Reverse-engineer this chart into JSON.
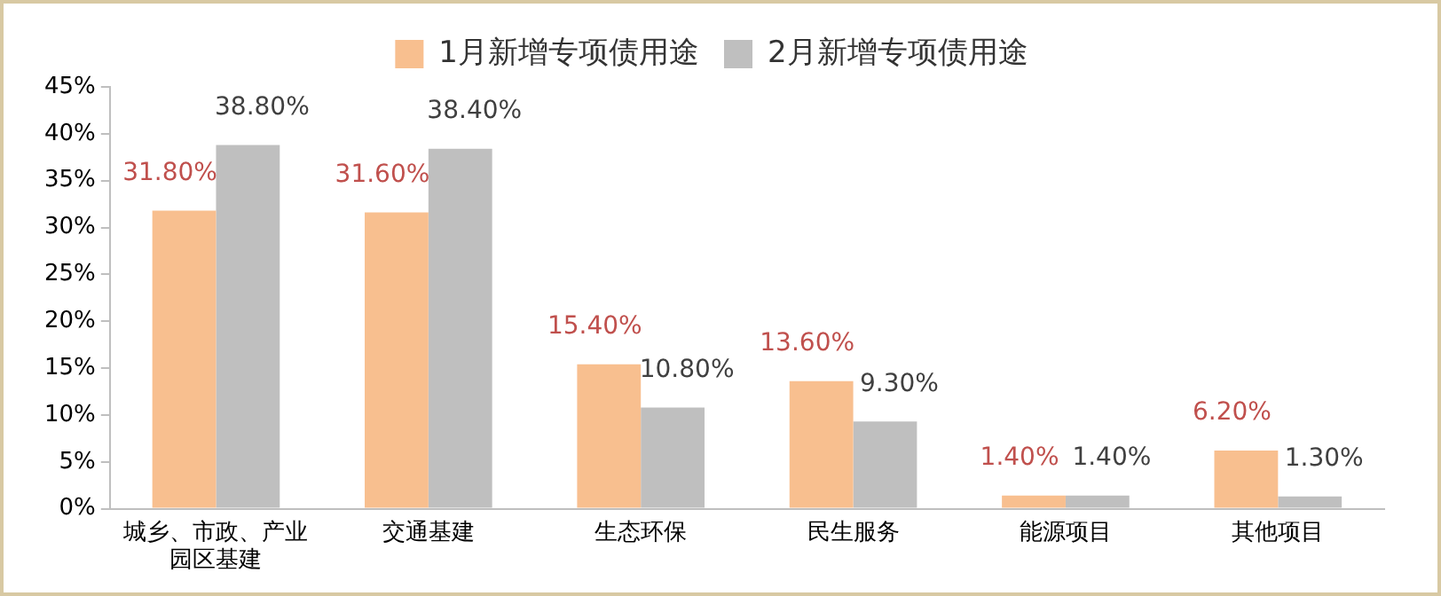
{
  "chart_data": {
    "type": "bar",
    "categories": [
      "城乡、市政、产业园区基建",
      "交通基建",
      "生态环保",
      "民生服务",
      "能源项目",
      "其他项目"
    ],
    "series": [
      {
        "name": "1月新增专项债用途",
        "color": "#f8bf8f",
        "values": [
          31.8,
          31.6,
          15.4,
          13.6,
          1.4,
          6.2
        ],
        "value_labels": [
          "31.80%",
          "31.60%",
          "15.40%",
          "13.60%",
          "1.40%",
          "6.20%"
        ]
      },
      {
        "name": "2月新增专项债用途",
        "color": "#bfbfbf",
        "values": [
          38.8,
          38.4,
          10.8,
          9.3,
          1.4,
          1.3
        ],
        "value_labels": [
          "38.80%",
          "38.40%",
          "10.80%",
          "9.30%",
          "1.40%",
          "1.30%"
        ]
      }
    ],
    "ylim": [
      0,
      45
    ],
    "yticks": [
      {
        "value": 0,
        "label": "0%"
      },
      {
        "value": 5,
        "label": "5%"
      },
      {
        "value": 10,
        "label": "10%"
      },
      {
        "value": 15,
        "label": "15%"
      },
      {
        "value": 20,
        "label": "20%"
      },
      {
        "value": 25,
        "label": "25%"
      },
      {
        "value": 30,
        "label": "30%"
      },
      {
        "value": 35,
        "label": "35%"
      },
      {
        "value": 40,
        "label": "40%"
      },
      {
        "value": 45,
        "label": "45%"
      }
    ],
    "grid": false,
    "legend": "top"
  }
}
